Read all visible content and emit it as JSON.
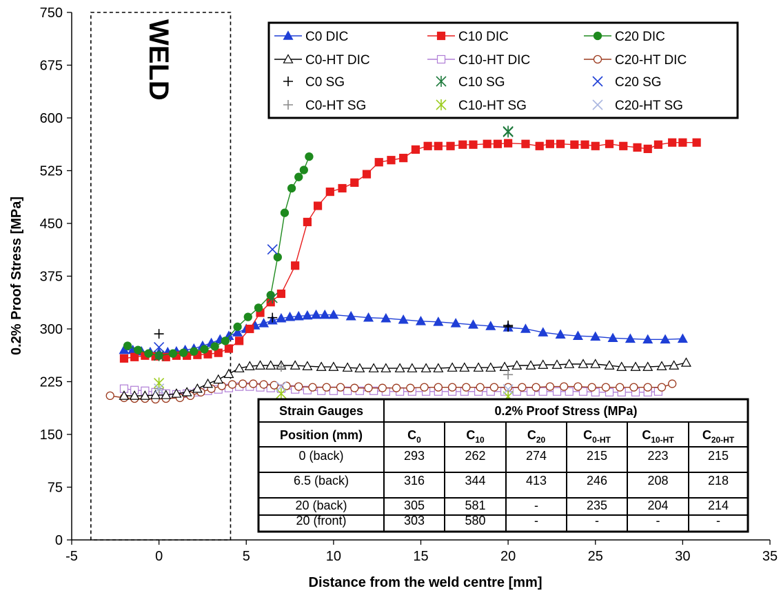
{
  "chart_data": {
    "type": "scatter",
    "xlabel": "Distance from the weld centre [mm]",
    "ylabel": "0.2% Proof Stress [MPa]",
    "xlim": [
      -5,
      35
    ],
    "ylim": [
      0,
      750
    ],
    "xticks": [
      -5,
      0,
      5,
      10,
      15,
      20,
      25,
      30,
      35
    ],
    "yticks": [
      0,
      75,
      150,
      225,
      300,
      375,
      450,
      525,
      600,
      675,
      750
    ],
    "grid": false,
    "legend_position": "top-right",
    "weld_zone": {
      "label": "WELD",
      "x_range": [
        -3.9,
        4.1
      ]
    },
    "series": [
      {
        "name": "C0 DIC",
        "color": "#1f3fd6",
        "marker": "triangle",
        "line": true,
        "x": [
          -2,
          -1.5,
          -1,
          -0.5,
          0,
          0.5,
          1,
          1.5,
          2,
          2.5,
          3,
          3.5,
          4,
          4.5,
          5,
          5.5,
          6,
          6.5,
          7,
          7.5,
          8,
          8.5,
          9,
          9.5,
          10,
          11,
          12,
          13,
          14,
          15,
          16,
          17,
          18,
          19,
          20,
          21,
          22,
          23,
          24,
          25,
          26,
          27,
          28,
          29,
          30
        ],
        "y": [
          270,
          270,
          268,
          267,
          266,
          267,
          268,
          270,
          272,
          276,
          280,
          285,
          290,
          295,
          300,
          305,
          308,
          312,
          315,
          317,
          318,
          319,
          320,
          320,
          320,
          318,
          316,
          315,
          313,
          311,
          310,
          308,
          306,
          304,
          302,
          300,
          295,
          292,
          290,
          289,
          287,
          286,
          285,
          285,
          286
        ]
      },
      {
        "name": "C10 DIC",
        "color": "#e81c1c",
        "marker": "square",
        "line": true,
        "x": [
          -2,
          -1.4,
          -0.8,
          -0.2,
          0.4,
          1,
          1.6,
          2.2,
          2.8,
          3.4,
          4,
          4.6,
          5.2,
          5.8,
          6.4,
          7,
          7.8,
          8.5,
          9.1,
          9.8,
          10.5,
          11.2,
          11.9,
          12.6,
          13.3,
          14,
          14.7,
          15.4,
          16,
          16.7,
          17.4,
          18,
          18.8,
          19.4,
          20,
          21,
          21.8,
          22.4,
          23,
          23.8,
          24.4,
          25,
          25.8,
          26.6,
          27.4,
          28,
          28.6,
          29.4,
          30,
          30.8
        ],
        "y": [
          258,
          260,
          262,
          261,
          260,
          262,
          262,
          263,
          264,
          266,
          272,
          283,
          300,
          323,
          338,
          350,
          390,
          452,
          475,
          495,
          500,
          508,
          520,
          537,
          540,
          543,
          555,
          560,
          560,
          560,
          562,
          562,
          563,
          563,
          564,
          563,
          560,
          563,
          563,
          562,
          562,
          560,
          563,
          560,
          558,
          556,
          562,
          565,
          565,
          565
        ]
      },
      {
        "name": "C20 DIC",
        "color": "#1e8a1e",
        "marker": "circle",
        "line": true,
        "x": [
          -1.8,
          -1.2,
          -0.6,
          0,
          0.8,
          1.4,
          2,
          2.6,
          3.2,
          3.8,
          4.5,
          5.1,
          5.7,
          6.4,
          6.8,
          7.2,
          7.6,
          8,
          8.3,
          8.6
        ],
        "y": [
          276,
          270,
          265,
          262,
          265,
          266,
          268,
          271,
          275,
          283,
          303,
          317,
          330,
          348,
          402,
          465,
          500,
          516,
          526,
          545
        ]
      },
      {
        "name": "C0-HT DIC",
        "color": "#000000",
        "marker": "triangle-open",
        "line": true,
        "x": [
          -2,
          -1.4,
          -0.8,
          -0.2,
          0.4,
          1,
          1.6,
          2.2,
          2.8,
          3.4,
          4,
          4.6,
          5.2,
          5.8,
          6.4,
          7,
          7.8,
          8.5,
          9.3,
          10,
          10.8,
          11.5,
          12.3,
          13,
          13.8,
          14.5,
          15.3,
          16,
          16.8,
          17.5,
          18.3,
          19,
          19.8,
          20.5,
          21.3,
          22,
          22.8,
          23.5,
          24.3,
          25,
          25.8,
          26.5,
          27.3,
          28,
          28.8,
          29.5,
          30.2
        ],
        "y": [
          205,
          205,
          205,
          206,
          206,
          208,
          210,
          215,
          222,
          228,
          236,
          244,
          247,
          248,
          248,
          248,
          248,
          247,
          246,
          246,
          245,
          244,
          244,
          244,
          244,
          244,
          244,
          244,
          245,
          245,
          245,
          245,
          246,
          248,
          248,
          249,
          249,
          250,
          250,
          250,
          248,
          246,
          246,
          246,
          247,
          248,
          252
        ]
      },
      {
        "name": "C10-HT DIC",
        "color": "#b07ed6",
        "marker": "square-open",
        "line": true,
        "x": [
          -2,
          -1.4,
          -0.8,
          -0.2,
          0.4,
          1,
          1.6,
          2.2,
          2.8,
          3.4,
          4,
          4.6,
          5.2,
          5.8,
          6.4,
          7,
          7.8,
          8.5,
          9.3,
          10,
          10.8,
          11.5,
          12.3,
          13,
          13.8,
          14.5,
          15.3,
          16,
          16.8,
          17.5,
          18.3,
          19,
          19.8,
          20.5,
          21.3,
          22,
          22.8,
          23.5,
          24.3,
          25,
          25.8,
          26.5,
          27.3,
          28,
          28.6
        ],
        "y": [
          215,
          213,
          212,
          210,
          208,
          207,
          208,
          210,
          212,
          214,
          216,
          218,
          218,
          217,
          216,
          215,
          214,
          213,
          212,
          212,
          212,
          212,
          212,
          211,
          211,
          211,
          211,
          211,
          211,
          211,
          211,
          211,
          211,
          211,
          211,
          211,
          211,
          211,
          211,
          210,
          210,
          210,
          210,
          210,
          211
        ]
      },
      {
        "name": "C20-HT DIC",
        "color": "#9c3a1e",
        "marker": "circle-open",
        "line": true,
        "x": [
          -2.8,
          -2,
          -1.4,
          -0.8,
          -0.2,
          0.4,
          1.2,
          1.8,
          2.4,
          3,
          3.6,
          4.2,
          4.8,
          5.4,
          6,
          6.6,
          7.3,
          8,
          8.8,
          9.6,
          10.4,
          11.2,
          12,
          12.8,
          13.6,
          14.4,
          15.2,
          16,
          16.8,
          17.6,
          18.4,
          19.2,
          20,
          20.8,
          21.6,
          22.4,
          23.2,
          24,
          24.8,
          25.6,
          26.4,
          27.2,
          28,
          28.8,
          29.4
        ],
        "y": [
          205,
          202,
          201,
          201,
          200,
          201,
          202,
          205,
          210,
          215,
          219,
          221,
          222,
          222,
          221,
          220,
          219,
          218,
          217,
          217,
          217,
          216,
          216,
          216,
          216,
          216,
          217,
          217,
          217,
          217,
          217,
          217,
          217,
          217,
          217,
          218,
          218,
          218,
          217,
          217,
          217,
          217,
          217,
          217,
          222
        ]
      },
      {
        "name": "C0 SG",
        "color": "#000000",
        "marker": "plus",
        "line": false,
        "x": [
          0,
          6.5,
          20,
          20
        ],
        "y": [
          293,
          316,
          305,
          303
        ]
      },
      {
        "name": "C10 SG",
        "color": "#1e7a3c",
        "marker": "asterisk",
        "line": false,
        "x": [
          0,
          6.5,
          20,
          20
        ],
        "y": [
          262,
          344,
          581,
          580
        ]
      },
      {
        "name": "C20 SG",
        "color": "#1f3fd6",
        "marker": "x",
        "line": false,
        "x": [
          0,
          6.5
        ],
        "y": [
          274,
          413
        ]
      },
      {
        "name": "C0-HT SG",
        "color": "#8a8a8a",
        "marker": "plus",
        "line": false,
        "x": [
          0,
          7,
          20
        ],
        "y": [
          215,
          246,
          235
        ]
      },
      {
        "name": "C10-HT SG",
        "color": "#9ccc1e",
        "marker": "asterisk",
        "line": false,
        "x": [
          0,
          7,
          20
        ],
        "y": [
          223,
          208,
          204
        ]
      },
      {
        "name": "C20-HT SG",
        "color": "#aab6e0",
        "marker": "x",
        "line": false,
        "x": [
          0,
          7,
          20
        ],
        "y": [
          215,
          218,
          214
        ]
      }
    ],
    "table": {
      "header1": [
        "Strain Gauges",
        "0.2% Proof Stress (MPa)"
      ],
      "position_header": "Position (mm)",
      "columns": [
        {
          "base": "C",
          "sub": "0"
        },
        {
          "base": "C",
          "sub": "10"
        },
        {
          "base": "C",
          "sub": "20"
        },
        {
          "base": "C",
          "sub": "0-HT"
        },
        {
          "base": "C",
          "sub": "10-HT"
        },
        {
          "base": "C",
          "sub": "20-HT"
        }
      ],
      "rows": [
        [
          "0 (back)",
          "293",
          "262",
          "274",
          "215",
          "223",
          "215"
        ],
        [
          "6.5 (back)",
          "316",
          "344",
          "413",
          "246",
          "208",
          "218"
        ],
        [
          "20 (back)",
          "305",
          "581",
          "-",
          "235",
          "204",
          "214"
        ],
        [
          "20 (front)",
          "303",
          "580",
          "-",
          "-",
          "-",
          "-"
        ]
      ]
    }
  }
}
